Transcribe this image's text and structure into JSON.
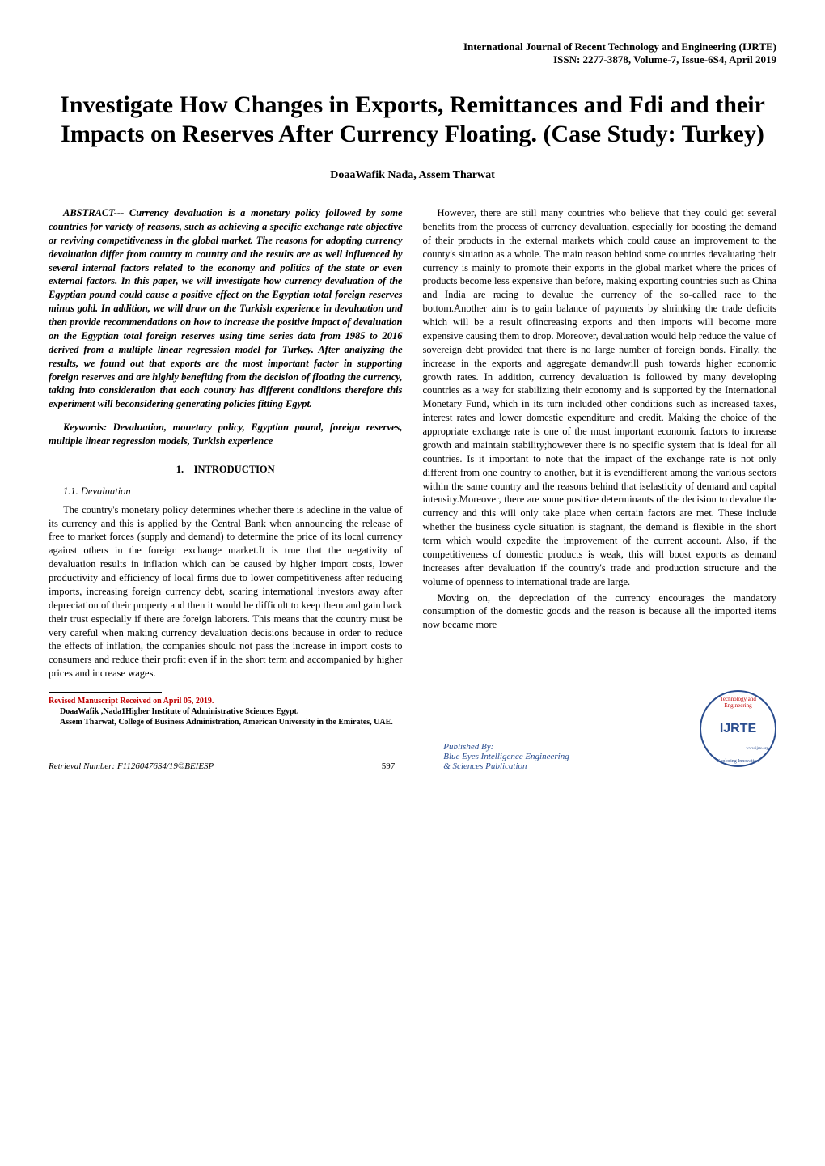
{
  "header": {
    "journal": "International Journal of Recent Technology and Engineering (IJRTE)",
    "issn": "ISSN: 2277-3878, Volume-7, Issue-6S4, April 2019"
  },
  "title": "Investigate How Changes in Exports, Remittances and Fdi and their Impacts on Reserves After Currency Floating. (Case Study: Turkey)",
  "authors": "DoaaWafik Nada, Assem Tharwat",
  "abstract": "ABSTRACT--- Currency devaluation is a monetary policy followed by some countries for variety of reasons, such as achieving a specific exchange rate objective or reviving competitiveness in the global market. The reasons for adopting currency devaluation differ from country to country and the results are as well influenced by several internal factors related to the economy and politics of the state or even external factors. In this paper, we will investigate how currency devaluation of the Egyptian pound could cause a positive effect on the Egyptian total foreign reserves minus gold. In addition, we will draw on the Turkish experience in devaluation and then provide recommendations on how to increase the positive impact of devaluation on the Egyptian total foreign reserves using time series data from 1985 to 2016 derived from a multiple linear regression model for Turkey. After analyzing the results, we found out that exports are the most important factor in supporting foreign reserves and are highly benefiting from the decision of floating the currency, taking into consideration that each country has different conditions therefore this experiment will beconsidering generating policies fitting Egypt.",
  "keywords": "Keywords: Devaluation, monetary policy, Egyptian pound, foreign reserves, multiple linear regression models, Turkish experience",
  "section1": {
    "number": "1.",
    "title": "INTRODUCTION"
  },
  "subsection1": "1.1. Devaluation",
  "left_body": "The country's monetary policy determines whether there is adecline in the value of its currency and this is applied by the Central Bank when announcing the release of free to market forces (supply and demand) to determine the price of its local currency against others in the foreign exchange market.It is true that the negativity of devaluation results in inflation which can be caused by higher import costs, lower productivity and efficiency of local firms due to lower competitiveness after reducing imports, increasing foreign currency debt, scaring international investors away after depreciation of their property and then it would be difficult to keep them and gain back their trust especially if there are foreign laborers. This means that the country must be very careful when making currency devaluation decisions because in order to reduce the effects of inflation, the companies should not pass the increase in import costs to consumers and reduce their profit even if in the short term and accompanied by higher prices and increase wages.",
  "right_body1": "However, there are still many countries who believe that they could get several benefits from the process of currency devaluation, especially for boosting the demand of their products in the external markets which could cause an improvement to the county's situation as a whole. The main reason behind some countries devaluating their currency is mainly to promote their exports in the global market where the prices of products become less expensive than before, making exporting countries such as China and India are racing to devalue the currency of the so-called race to the bottom.Another aim is to gain balance of payments by shrinking the trade deficits which will be a result ofincreasing exports and then imports will become more expensive causing them to drop. Moreover, devaluation would help reduce the value of sovereign debt provided that there is no large number of foreign bonds. Finally, the increase in the exports and aggregate demandwill push towards higher economic growth rates. In addition, currency devaluation is followed by many developing countries as a way for stabilizing their economy and is supported by the International Monetary Fund, which in its turn included other conditions such as increased taxes, interest rates and lower domestic expenditure and credit. Making the choice of the appropriate exchange rate is one of the most important economic factors to increase growth and maintain stability;however there is no specific system that is ideal for all countries. Is it important to note that the impact of the exchange rate is not only different from one country to another, but it is evendifferent among the various sectors within the same country and the reasons behind that iselasticity of demand and capital intensity.Moreover, there are some positive determinants of the decision to devalue the currency and this will only take place when certain factors are met. These include whether the business cycle situation is stagnant, the demand is flexible in the short term which would expedite the improvement of the current account. Also, if the competitiveness of domestic products is weak, this will boost exports as demand increases after devaluation if the country's trade and production structure and the volume of openness to international trade are large.",
  "right_body2": "Moving on, the depreciation of the currency encourages the mandatory consumption of the domestic goods and the reason is because all the imported items now became more",
  "manuscript": {
    "received": "Revised Manuscript Received on April 05, 2019.",
    "author1": "DoaaWafik ,Nada1Higher Institute of Administrative Sciences Egypt.",
    "author2": "Assem Tharwat, College of Business Administration, American University in the Emirates, UAE."
  },
  "footer": {
    "retrieval": "Retrieval Number: F11260476S4/19©BEIESP",
    "page_num": "597",
    "publisher_line1": "Published By:",
    "publisher_line2": "Blue Eyes Intelligence Engineering",
    "publisher_line3": "& Sciences Publication"
  },
  "logo": {
    "top_text": "Technology and Engineering",
    "center": "IJRTE",
    "bottom_text": "Exploring Innovation",
    "url": "www.ijrte.org",
    "journal_text": "International Journal of Recent"
  },
  "colors": {
    "text": "#000000",
    "red": "#c00000",
    "blue": "#2a4d8f",
    "background": "#ffffff"
  }
}
